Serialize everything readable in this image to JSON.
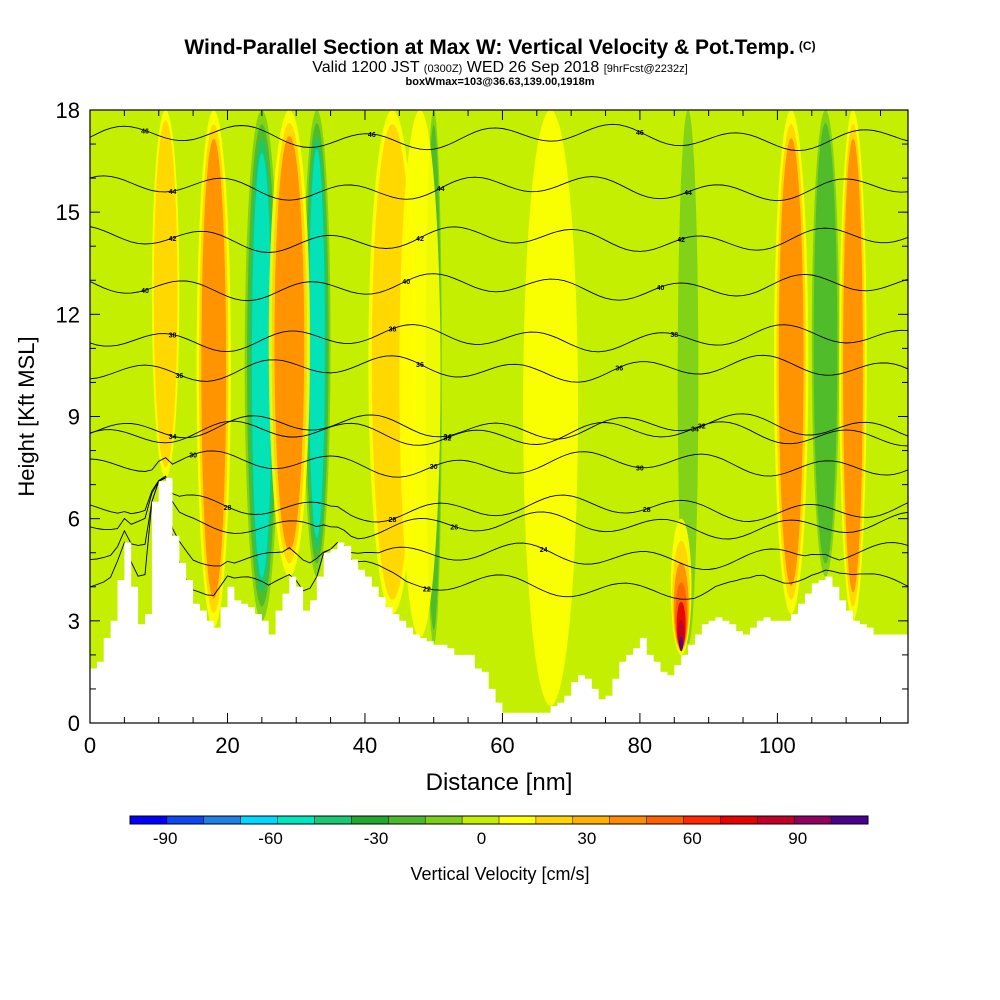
{
  "chart_data": {
    "type": "heatmap",
    "title": "Wind-Parallel Section at Max W: Vertical Velocity & Pot.Temp.",
    "title_mark": "(C)",
    "subtitle_valid": "Valid 1200 JST",
    "subtitle_utc": "(0300Z)",
    "subtitle_date": "WED 26 Sep 2018",
    "subtitle_run": "[9hrFcst@2232z]",
    "subtitle_box": "boxWmax=103@36.63,139.00,1918m",
    "xlabel": "Distance [nm]",
    "ylabel": "Height [Kft MSL]",
    "xlim": [
      0,
      119
    ],
    "ylim": [
      0,
      18
    ],
    "xticks": [
      0,
      20,
      40,
      60,
      80,
      100
    ],
    "yticks": [
      0,
      3,
      6,
      9,
      12,
      15,
      18
    ],
    "colorbar": {
      "label": "Vertical Velocity [cm/s]",
      "range": [
        -100,
        110
      ],
      "ticks": [
        -90,
        -60,
        -30,
        0,
        30,
        60,
        90
      ],
      "colors": [
        "#0000ff",
        "#0d47f2",
        "#1f80e6",
        "#00d8ff",
        "#00e6c0",
        "#19c873",
        "#23a82f",
        "#4bb92b",
        "#7bcf19",
        "#c4ef00",
        "#ffff00",
        "#ffd400",
        "#ffb000",
        "#ff8c00",
        "#ff6000",
        "#ff2800",
        "#e60000",
        "#c00028",
        "#900060",
        "#4b0090"
      ]
    },
    "terrain_kft": [
      1.6,
      1.8,
      2.5,
      3.0,
      4.2,
      5.3,
      4.0,
      2.9,
      3.2,
      6.5,
      7.1,
      7.2,
      5.5,
      4.7,
      4.2,
      3.5,
      3.3,
      3.0,
      2.8,
      3.4,
      4.0,
      3.6,
      3.5,
      3.4,
      3.2,
      3.0,
      2.6,
      3.3,
      3.8,
      4.3,
      4.0,
      3.3,
      3.6,
      4.3,
      5.0,
      5.1,
      5.3,
      5.2,
      4.8,
      4.5,
      4.3,
      4.0,
      3.7,
      3.4,
      3.2,
      3.0,
      2.8,
      2.6,
      2.5,
      2.4,
      2.3,
      2.3,
      2.2,
      2.0,
      2.0,
      2.0,
      1.6,
      1.5,
      1.0,
      0.6,
      0.3,
      0.3,
      0.3,
      0.3,
      0.3,
      0.3,
      0.3,
      0.5,
      0.6,
      0.8,
      1.2,
      1.4,
      1.3,
      1.0,
      0.7,
      0.8,
      1.3,
      1.8,
      2.0,
      2.2,
      2.5,
      2.0,
      1.8,
      1.5,
      1.4,
      1.7,
      2.0,
      2.3,
      2.6,
      2.9,
      3.0,
      3.1,
      3.0,
      2.9,
      2.7,
      2.6,
      2.8,
      3.0,
      3.1,
      3.0,
      3.0,
      3.0,
      3.2,
      3.5,
      3.8,
      4.1,
      4.2,
      4.3,
      4.0,
      3.6,
      3.3,
      3.0,
      2.9,
      2.8,
      2.6,
      2.6,
      2.6,
      2.6,
      2.6,
      2.6
    ],
    "updrafts": [
      {
        "x": 11,
        "w": 2.0,
        "w_cms": 30
      },
      {
        "x": 18,
        "w": 2.5,
        "w_cms": 45
      },
      {
        "x": 29,
        "w": 3.0,
        "w_cms": 40
      },
      {
        "x": 44,
        "w": 3.5,
        "w_cms": 25
      },
      {
        "x": 48,
        "w": 3.0,
        "w_cms": 15
      },
      {
        "x": 67,
        "w": 4.0,
        "w_cms": 10
      },
      {
        "x": 86,
        "w": 1.5,
        "w_cms": 103
      },
      {
        "x": 102,
        "w": 2.5,
        "w_cms": 40
      },
      {
        "x": 111,
        "w": 2.0,
        "w_cms": 40
      }
    ],
    "downdrafts": [
      {
        "x": 25,
        "w": 2.5,
        "w_cms": -60
      },
      {
        "x": 33,
        "w": 2.0,
        "w_cms": -55
      },
      {
        "x": 50,
        "w": 1.2,
        "w_cms": -25
      },
      {
        "x": 87,
        "w": 1.5,
        "w_cms": -20
      },
      {
        "x": 107,
        "w": 2.0,
        "w_cms": -25
      }
    ],
    "theta_lines": [
      {
        "label": "46",
        "y": 17.2,
        "label_x": [
          8,
          41,
          80
        ]
      },
      {
        "label": "44",
        "y": 15.7,
        "label_x": [
          12,
          51,
          87
        ]
      },
      {
        "label": "42",
        "y": 14.2,
        "label_x": [
          12,
          48,
          86
        ]
      },
      {
        "label": "40",
        "y": 12.8,
        "label_x": [
          8,
          46,
          83
        ]
      },
      {
        "label": "38",
        "y": 11.3,
        "label_x": [
          12,
          44,
          85
        ]
      },
      {
        "label": "36",
        "y": 10.4,
        "label_x": [
          13,
          48,
          77
        ]
      },
      {
        "label": "34",
        "y": 8.7,
        "label_x": [
          12,
          52,
          88
        ]
      },
      {
        "label": "32",
        "y": 8.5,
        "label_x": [
          52,
          89
        ]
      },
      {
        "label": "30",
        "y": 7.6,
        "label_x": [
          15,
          50,
          80
        ]
      },
      {
        "label": "28",
        "y": 6.3,
        "label_x": [
          20,
          44,
          81
        ]
      },
      {
        "label": "26",
        "y": 5.8,
        "label_x": [
          53
        ]
      },
      {
        "label": "24",
        "y": 4.9,
        "label_x": [
          66
        ]
      },
      {
        "label": "22",
        "y": 4.0,
        "label_x": [
          49
        ]
      }
    ]
  }
}
